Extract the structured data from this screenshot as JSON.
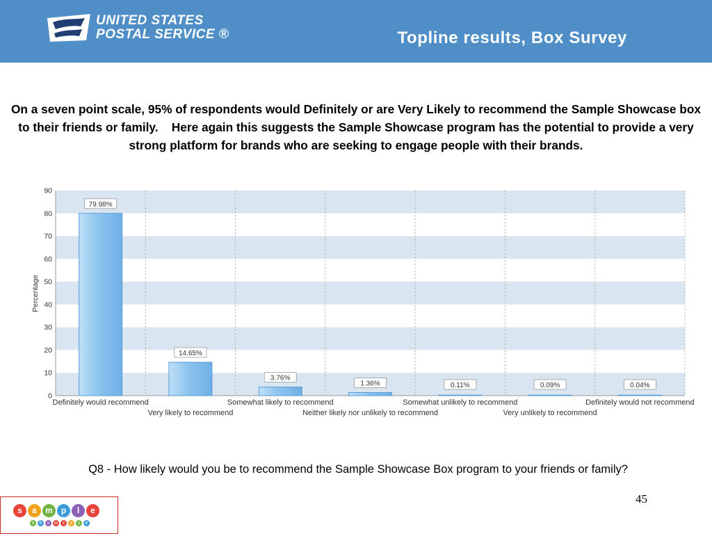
{
  "header": {
    "logo_line1": "UNITED STATES",
    "logo_line2": "POSTAL SERVICE ®",
    "title": "Topline results, Box Survey"
  },
  "intro_text": "On a seven point scale, 95% of respondents would Definitely or are Very Likely to recommend the Sample Showcase box to their friends or family.    Here again this suggests the Sample Showcase program has the potential to provide a very strong platform for brands who are seeking to engage people with their brands.",
  "question": "Q8 - How likely would you be to recommend the Sample Showcase Box program to your friends or family?",
  "page_number": "45",
  "brand_logo": {
    "letters": [
      "s",
      "a",
      "m",
      "p",
      "l",
      "e"
    ],
    "sub_letters": [
      "s",
      "h",
      "o",
      "w",
      "c",
      "a",
      "s",
      "e"
    ]
  },
  "colors": {
    "header_bg": "#4f8ec6",
    "bar_fill": "#8cc4ef",
    "bar_edge": "#5a9bd4",
    "band": "#d9e6f2",
    "logo_dots": [
      "#e8443a",
      "#f2a31b",
      "#71b444",
      "#3b9ad9",
      "#8b5fb3",
      "#e8443a"
    ]
  },
  "chart_data": {
    "type": "bar",
    "categories": [
      "Definitely would recommend",
      "Very likely to recommend",
      "Somewhat likely to recommend",
      "Neither likely nor unlikely to recommend",
      "Somewhat unlikely to recommend",
      "Very unlikely to recommend",
      "Definitely would not recommend"
    ],
    "values": [
      79.98,
      14.65,
      3.76,
      1.36,
      0.11,
      0.09,
      0.04
    ],
    "data_labels": [
      "79.98%",
      "14.65%",
      "3.76%",
      "1.36%",
      "0.11%",
      "0.09%",
      "0.04%"
    ],
    "ylabel": "Percentage",
    "xlabel": "",
    "ylim": [
      0,
      90
    ],
    "yticks": [
      0,
      10,
      20,
      30,
      40,
      50,
      60,
      70,
      80,
      90
    ],
    "grid": "alternating horizontal bands with dashed vertical separators",
    "legend": "none"
  }
}
